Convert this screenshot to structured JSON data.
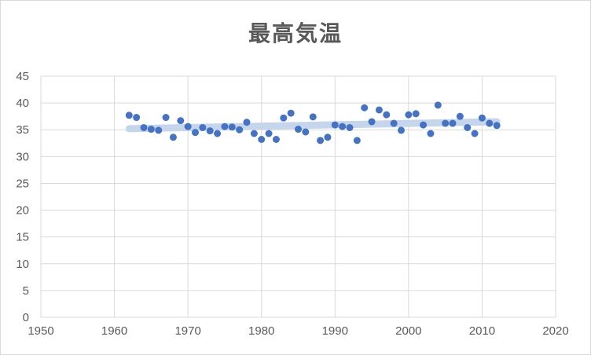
{
  "chart_data": {
    "type": "scatter",
    "title": "最高気温",
    "xlim": [
      1950,
      2020
    ],
    "ylim": [
      0,
      45
    ],
    "x_ticks": [
      1950,
      1960,
      1970,
      1980,
      1990,
      2000,
      2010,
      2020
    ],
    "y_ticks": [
      0,
      5,
      10,
      15,
      20,
      25,
      30,
      35,
      40,
      45
    ],
    "grid": {
      "horizontal": true,
      "vertical": true
    },
    "legend": "none",
    "colors": {
      "points": "#4472c4",
      "trendline": "#c5d5ec",
      "grid": "#d9d9d9",
      "text": "#595959"
    },
    "trendline": {
      "type": "linear",
      "x": [
        1962,
        2012
      ],
      "y": [
        35.2,
        36.5
      ]
    },
    "series": [
      {
        "points": [
          [
            1962,
            37.7
          ],
          [
            1963,
            37.3
          ],
          [
            1964,
            35.4
          ],
          [
            1965,
            35.1
          ],
          [
            1966,
            34.9
          ],
          [
            1967,
            37.3
          ],
          [
            1968,
            33.6
          ],
          [
            1969,
            36.7
          ],
          [
            1970,
            35.6
          ],
          [
            1971,
            34.5
          ],
          [
            1972,
            35.4
          ],
          [
            1973,
            34.8
          ],
          [
            1974,
            34.3
          ],
          [
            1975,
            35.6
          ],
          [
            1976,
            35.5
          ],
          [
            1977,
            35.0
          ],
          [
            1978,
            36.4
          ],
          [
            1979,
            34.3
          ],
          [
            1980,
            33.2
          ],
          [
            1981,
            34.3
          ],
          [
            1982,
            33.2
          ],
          [
            1983,
            37.2
          ],
          [
            1984,
            38.1
          ],
          [
            1985,
            35.1
          ],
          [
            1986,
            34.6
          ],
          [
            1987,
            37.4
          ],
          [
            1988,
            33.0
          ],
          [
            1989,
            33.6
          ],
          [
            1990,
            35.9
          ],
          [
            1991,
            35.6
          ],
          [
            1992,
            35.4
          ],
          [
            1993,
            33.0
          ],
          [
            1994,
            39.1
          ],
          [
            1995,
            36.5
          ],
          [
            1996,
            38.7
          ],
          [
            1997,
            37.8
          ],
          [
            1998,
            36.2
          ],
          [
            1999,
            34.9
          ],
          [
            2000,
            37.8
          ],
          [
            2001,
            38.0
          ],
          [
            2002,
            35.9
          ],
          [
            2003,
            34.3
          ],
          [
            2004,
            39.6
          ],
          [
            2005,
            36.2
          ],
          [
            2006,
            36.2
          ],
          [
            2007,
            37.5
          ],
          [
            2008,
            35.4
          ],
          [
            2009,
            34.3
          ],
          [
            2010,
            37.2
          ],
          [
            2011,
            36.2
          ],
          [
            2012,
            35.8
          ]
        ]
      }
    ]
  }
}
